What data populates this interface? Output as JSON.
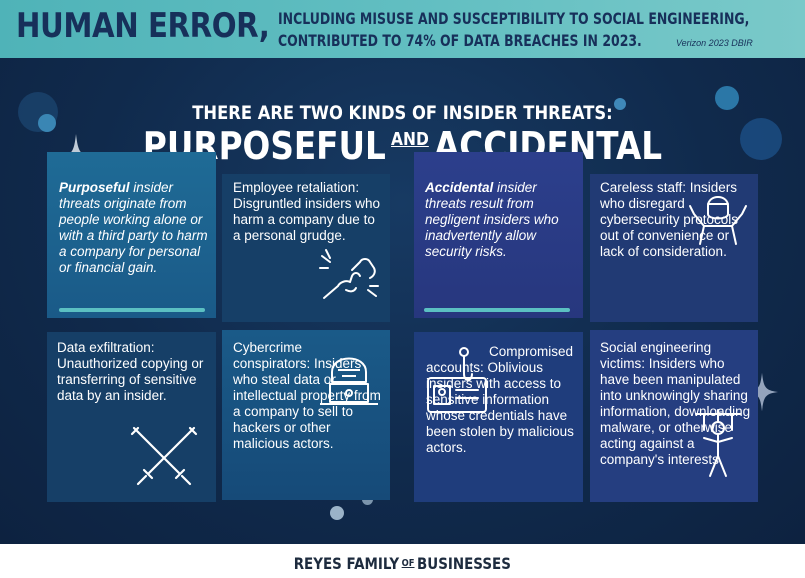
{
  "banner": {
    "headline": "HUMAN ERROR,",
    "line1": "INCLUDING MISUSE AND SUSCEPTIBILITY TO SOCIAL ENGINEERING,",
    "line2": "CONTRIBUTED TO 74% OF DATA BREACHES IN 2023.",
    "source": "Verizon 2023 DBIR"
  },
  "intro": {
    "subtitle": "THERE ARE TWO KINDS OF INSIDER THREATS:",
    "word1": "PURPOSEFUL",
    "conj": "AND",
    "word2": "ACCIDENTAL"
  },
  "purposeful": {
    "definition_lead": "Purposeful",
    "definition_rest": " insider threats originate from people working alone or with a third party to harm a company for personal or financial gain.",
    "retaliation": "Employee retaliation: Disgruntled insiders who harm a company due to a personal grudge.",
    "exfiltration": "Data exfiltration: Unauthorized copying or transferring of sensitive data by an insider.",
    "cybercrime": "Cybercrime conspirators: Insiders who steal data or intellectual property from a company to sell to hackers or other malicious actors."
  },
  "accidental": {
    "definition_lead": "Accidental",
    "definition_rest": " insider threats result from negligent insiders who inadvertently allow security risks.",
    "careless": "Careless staff: Insiders who disregard cybersecurity protocols out of convenience or lack of consideration.",
    "compromised": "Compromised accounts: Oblivious insiders with access to sensitive information whose credentials have been stolen by malicious actors.",
    "social": "Social engineering victims: Insiders who have been manipulated into unknowingly sharing information, downloading malware, or otherwise acting against a company's interests."
  },
  "footer": {
    "left": "REYES FAMILY",
    "of": "OF",
    "right": "BUSINESSES"
  },
  "icons": [
    "fist-bump-icon",
    "crossed-swords-icon",
    "hacker-laptop-icon",
    "shrugging-person-icon",
    "id-card-hook-icon",
    "puppet-marionette-icon"
  ],
  "colors": {
    "banner": "#5fbcc0",
    "navy": "#102a4c",
    "accent_teal": "#5bc0c2",
    "text_dark": "#17305a"
  }
}
